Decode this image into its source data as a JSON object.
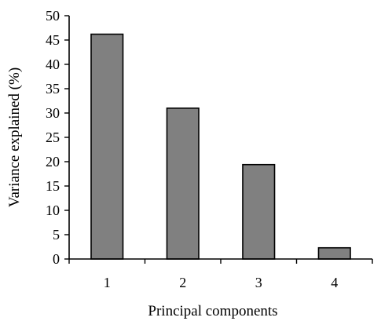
{
  "chart_data": {
    "type": "bar",
    "categories": [
      "1",
      "2",
      "3",
      "4"
    ],
    "values": [
      46.2,
      31.0,
      19.4,
      2.3
    ],
    "xlabel": "Principal components",
    "ylabel": "Variance explained (%)",
    "ylim": [
      0,
      50
    ],
    "yticks": [
      0,
      5,
      10,
      15,
      20,
      25,
      30,
      35,
      40,
      45,
      50
    ],
    "grid": false,
    "bar_color": "#808080"
  }
}
